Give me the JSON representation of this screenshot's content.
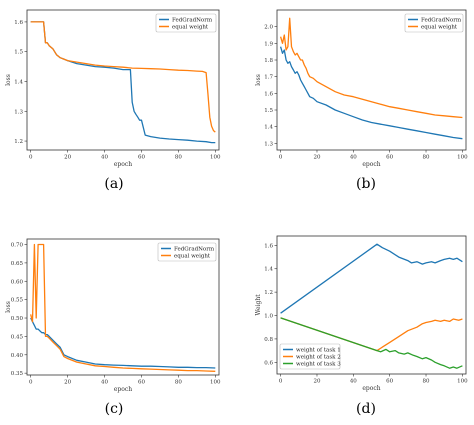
{
  "chart_data": [
    {
      "type": "line",
      "caption": "(a)",
      "xlabel": "epoch",
      "ylabel": "loss",
      "xlim": [
        -2,
        102
      ],
      "ylim": [
        1.17,
        1.64
      ],
      "xticks": [
        0,
        20,
        40,
        60,
        80,
        100
      ],
      "yticks": [
        1.2,
        1.3,
        1.4,
        1.5,
        1.6
      ],
      "ytick_labels": [
        "1.2",
        "1.3",
        "1.4",
        "1.5",
        "1.6"
      ],
      "legend": "top-right",
      "series": [
        {
          "name": "FedGradNorm",
          "color": "#1f77b4",
          "x": [
            0,
            1,
            2,
            3,
            4,
            5,
            6,
            7,
            8,
            9,
            10,
            12,
            14,
            16,
            18,
            20,
            25,
            30,
            35,
            40,
            45,
            50,
            52,
            54,
            55,
            56,
            57,
            58,
            59,
            60,
            62,
            65,
            70,
            75,
            80,
            85,
            90,
            95,
            98,
            100
          ],
          "y": [
            1.6,
            1.6,
            1.6,
            1.6,
            1.6,
            1.6,
            1.6,
            1.6,
            1.53,
            1.53,
            1.52,
            1.51,
            1.49,
            1.48,
            1.475,
            1.47,
            1.46,
            1.455,
            1.45,
            1.448,
            1.445,
            1.44,
            1.44,
            1.44,
            1.33,
            1.3,
            1.29,
            1.28,
            1.27,
            1.27,
            1.22,
            1.215,
            1.21,
            1.207,
            1.205,
            1.203,
            1.2,
            1.198,
            1.195,
            1.195
          ]
        },
        {
          "name": "equal weight",
          "color": "#ff7f0e",
          "x": [
            0,
            1,
            2,
            3,
            4,
            5,
            6,
            7,
            8,
            9,
            10,
            12,
            14,
            16,
            18,
            20,
            25,
            30,
            35,
            40,
            45,
            50,
            55,
            60,
            65,
            70,
            75,
            80,
            85,
            90,
            93,
            95,
            96,
            97,
            98,
            99,
            100
          ],
          "y": [
            1.6,
            1.6,
            1.6,
            1.6,
            1.6,
            1.6,
            1.6,
            1.6,
            1.53,
            1.53,
            1.52,
            1.51,
            1.49,
            1.48,
            1.475,
            1.47,
            1.465,
            1.46,
            1.455,
            1.452,
            1.45,
            1.448,
            1.445,
            1.444,
            1.443,
            1.442,
            1.44,
            1.438,
            1.437,
            1.435,
            1.434,
            1.43,
            1.36,
            1.28,
            1.25,
            1.235,
            1.23
          ]
        }
      ]
    },
    {
      "type": "line",
      "caption": "(b)",
      "xlabel": "epoch",
      "ylabel": "loss",
      "xlim": [
        -2,
        102
      ],
      "ylim": [
        1.26,
        2.1
      ],
      "xticks": [
        0,
        20,
        40,
        60,
        80,
        100
      ],
      "yticks": [
        1.3,
        1.4,
        1.5,
        1.6,
        1.7,
        1.8,
        1.9,
        2.0
      ],
      "ytick_labels": [
        "1.3",
        "1.4",
        "1.5",
        "1.6",
        "1.7",
        "1.8",
        "1.9",
        "2.0"
      ],
      "legend": "top-right",
      "series": [
        {
          "name": "FedGradNorm",
          "color": "#1f77b4",
          "x": [
            0,
            1,
            2,
            3,
            4,
            5,
            6,
            7,
            8,
            9,
            10,
            11,
            12,
            13,
            14,
            15,
            16,
            18,
            20,
            25,
            30,
            35,
            40,
            45,
            50,
            55,
            60,
            65,
            70,
            75,
            80,
            85,
            90,
            95,
            100
          ],
          "y": [
            1.88,
            1.84,
            1.86,
            1.8,
            1.78,
            1.79,
            1.76,
            1.74,
            1.72,
            1.73,
            1.71,
            1.68,
            1.66,
            1.64,
            1.62,
            1.6,
            1.58,
            1.57,
            1.55,
            1.53,
            1.5,
            1.48,
            1.46,
            1.44,
            1.425,
            1.415,
            1.405,
            1.395,
            1.385,
            1.375,
            1.365,
            1.355,
            1.345,
            1.335,
            1.328
          ]
        },
        {
          "name": "equal weight",
          "color": "#ff7f0e",
          "x": [
            0,
            1,
            2,
            3,
            4,
            5,
            6,
            7,
            8,
            9,
            10,
            11,
            12,
            13,
            14,
            15,
            16,
            18,
            20,
            25,
            30,
            35,
            40,
            45,
            50,
            55,
            60,
            65,
            70,
            75,
            80,
            85,
            90,
            95,
            100
          ],
          "y": [
            1.94,
            1.9,
            1.95,
            1.86,
            1.88,
            2.05,
            1.88,
            1.85,
            1.83,
            1.84,
            1.82,
            1.8,
            1.8,
            1.77,
            1.75,
            1.72,
            1.7,
            1.69,
            1.67,
            1.64,
            1.61,
            1.59,
            1.58,
            1.565,
            1.55,
            1.535,
            1.52,
            1.51,
            1.5,
            1.49,
            1.48,
            1.47,
            1.465,
            1.46,
            1.455
          ]
        }
      ]
    },
    {
      "type": "line",
      "caption": "(c)",
      "xlabel": "epoch",
      "ylabel": "loss",
      "xlim": [
        -2,
        102
      ],
      "ylim": [
        0.345,
        0.715
      ],
      "xticks": [
        0,
        20,
        40,
        60,
        80,
        100
      ],
      "yticks": [
        0.35,
        0.4,
        0.45,
        0.5,
        0.55,
        0.6,
        0.65,
        0.7
      ],
      "ytick_labels": [
        "0.35",
        "0.40",
        "0.45",
        "0.50",
        "0.55",
        "0.60",
        "0.65",
        "0.70"
      ],
      "legend": "top-right",
      "series": [
        {
          "name": "FedGradNorm",
          "color": "#1f77b4",
          "x": [
            0,
            1,
            2,
            3,
            4,
            5,
            6,
            7,
            8,
            9,
            10,
            12,
            14,
            16,
            18,
            20,
            25,
            30,
            35,
            40,
            45,
            50,
            55,
            60,
            65,
            70,
            75,
            80,
            85,
            90,
            95,
            100
          ],
          "y": [
            0.5,
            0.49,
            0.48,
            0.47,
            0.47,
            0.465,
            0.46,
            0.46,
            0.455,
            0.455,
            0.45,
            0.44,
            0.43,
            0.42,
            0.4,
            0.395,
            0.385,
            0.38,
            0.375,
            0.373,
            0.372,
            0.371,
            0.37,
            0.369,
            0.369,
            0.368,
            0.367,
            0.366,
            0.366,
            0.365,
            0.365,
            0.364
          ]
        },
        {
          "name": "equal weight",
          "color": "#ff7f0e",
          "x": [
            0,
            1,
            2,
            3,
            4,
            5,
            6,
            7,
            8,
            9,
            10,
            12,
            14,
            16,
            18,
            20,
            25,
            30,
            35,
            40,
            45,
            50,
            55,
            60,
            65,
            70,
            75,
            80,
            85,
            90,
            95,
            100
          ],
          "y": [
            0.51,
            0.49,
            0.7,
            0.5,
            0.7,
            0.7,
            0.7,
            0.7,
            0.45,
            0.45,
            0.445,
            0.435,
            0.425,
            0.415,
            0.395,
            0.39,
            0.38,
            0.375,
            0.37,
            0.368,
            0.366,
            0.364,
            0.363,
            0.362,
            0.361,
            0.36,
            0.359,
            0.358,
            0.357,
            0.357,
            0.356,
            0.355
          ]
        }
      ]
    },
    {
      "type": "line",
      "caption": "(d)",
      "xlabel": "epoch",
      "ylabel": "Weight",
      "xlim": [
        -2,
        102
      ],
      "ylim": [
        0.5,
        1.68
      ],
      "xticks": [
        0,
        20,
        40,
        60,
        80,
        100
      ],
      "yticks": [
        0.6,
        0.8,
        1.0,
        1.2,
        1.4,
        1.6
      ],
      "ytick_labels": [
        "0.6",
        "0.8",
        "1.0",
        "1.2",
        "1.4",
        "1.6"
      ],
      "legend": "bottom-left",
      "series": [
        {
          "name": "weight of task 1",
          "color": "#1f77b4",
          "x": [
            0,
            53,
            56,
            60,
            65,
            70,
            72,
            75,
            78,
            80,
            83,
            85,
            88,
            90,
            93,
            95,
            97,
            100
          ],
          "y": [
            1.02,
            1.61,
            1.58,
            1.55,
            1.5,
            1.47,
            1.45,
            1.46,
            1.44,
            1.45,
            1.46,
            1.45,
            1.47,
            1.48,
            1.49,
            1.48,
            1.49,
            1.46
          ]
        },
        {
          "name": "weight of task 2",
          "color": "#ff7f0e",
          "x": [
            0,
            53,
            56,
            60,
            65,
            70,
            75,
            78,
            80,
            83,
            85,
            88,
            90,
            93,
            95,
            98,
            100
          ],
          "y": [
            0.98,
            0.7,
            0.73,
            0.77,
            0.82,
            0.87,
            0.9,
            0.93,
            0.94,
            0.95,
            0.96,
            0.95,
            0.96,
            0.95,
            0.97,
            0.96,
            0.97
          ]
        },
        {
          "name": "weight of task 3",
          "color": "#2ca02c",
          "x": [
            0,
            53,
            55,
            58,
            60,
            63,
            65,
            68,
            70,
            73,
            75,
            78,
            80,
            83,
            85,
            88,
            90,
            93,
            95,
            97,
            100
          ],
          "y": [
            0.98,
            0.7,
            0.69,
            0.71,
            0.69,
            0.7,
            0.68,
            0.67,
            0.68,
            0.66,
            0.65,
            0.63,
            0.64,
            0.62,
            0.6,
            0.58,
            0.57,
            0.55,
            0.56,
            0.55,
            0.57
          ]
        }
      ]
    }
  ]
}
